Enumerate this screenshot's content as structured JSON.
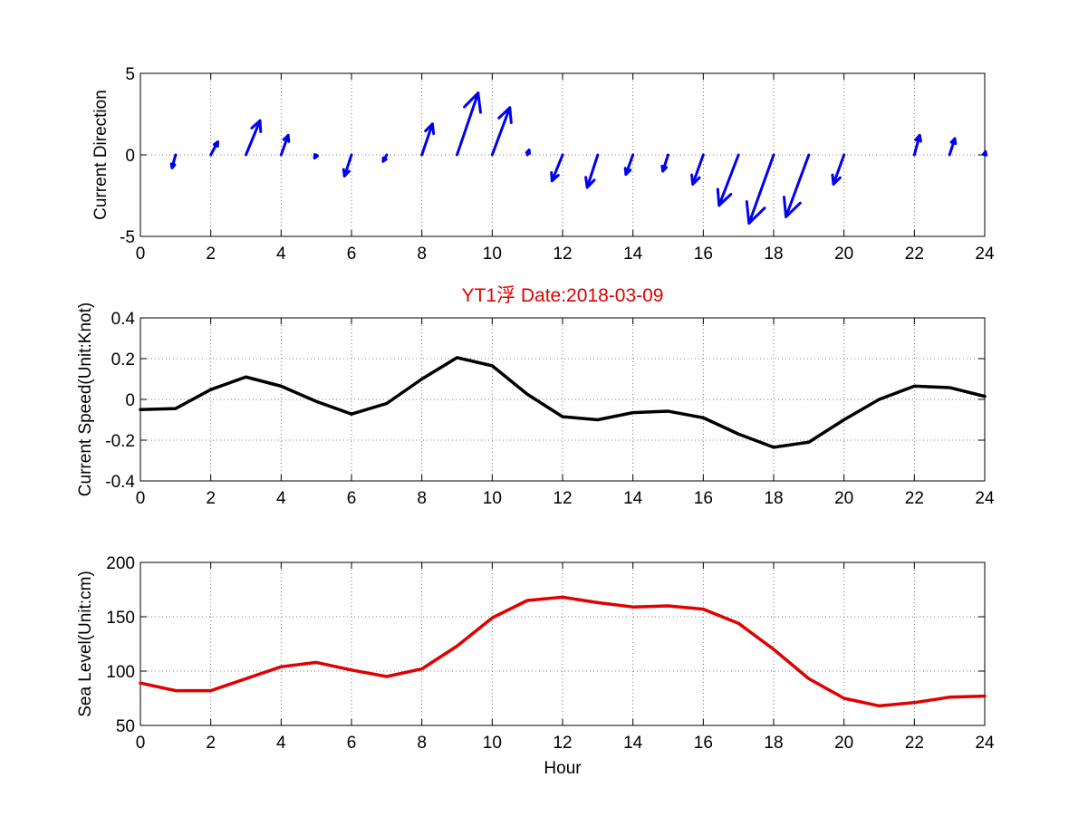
{
  "title": {
    "text": "YT1浮   Date:2018-03-09",
    "color": "#e00000"
  },
  "xlabel": "Hour",
  "chart_data": [
    {
      "type": "quiver",
      "ylabel": "Current Direction",
      "xlim": [
        0,
        24
      ],
      "ylim": [
        -5,
        5
      ],
      "xticks": [
        "0",
        "2",
        "4",
        "6",
        "8",
        "10",
        "12",
        "14",
        "16",
        "18",
        "20",
        "22",
        "24"
      ],
      "yticks": [
        "-5",
        "0",
        "5"
      ],
      "grid": true,
      "color": "#0000ee",
      "arrows": [
        {
          "x": 1,
          "u": -0.1,
          "v": -0.8
        },
        {
          "x": 2,
          "u": 0.2,
          "v": 0.8
        },
        {
          "x": 3,
          "u": 0.4,
          "v": 2.1
        },
        {
          "x": 4,
          "u": 0.2,
          "v": 1.2
        },
        {
          "x": 5,
          "u": -0.05,
          "v": -0.2
        },
        {
          "x": 6,
          "u": -0.2,
          "v": -1.3
        },
        {
          "x": 7,
          "u": -0.1,
          "v": -0.4
        },
        {
          "x": 8,
          "u": 0.3,
          "v": 1.9
        },
        {
          "x": 9,
          "u": 0.6,
          "v": 3.8
        },
        {
          "x": 10,
          "u": 0.5,
          "v": 2.9
        },
        {
          "x": 11,
          "u": 0.05,
          "v": 0.3
        },
        {
          "x": 12,
          "u": -0.3,
          "v": -1.6
        },
        {
          "x": 13,
          "u": -0.3,
          "v": -2.0
        },
        {
          "x": 14,
          "u": -0.2,
          "v": -1.2
        },
        {
          "x": 15,
          "u": -0.15,
          "v": -1.0
        },
        {
          "x": 16,
          "u": -0.3,
          "v": -1.8
        },
        {
          "x": 17,
          "u": -0.55,
          "v": -3.1
        },
        {
          "x": 18,
          "u": -0.7,
          "v": -4.2
        },
        {
          "x": 19,
          "u": -0.65,
          "v": -3.8
        },
        {
          "x": 20,
          "u": -0.3,
          "v": -1.8
        },
        {
          "x": 22,
          "u": 0.15,
          "v": 1.2
        },
        {
          "x": 23,
          "u": 0.15,
          "v": 1.0
        },
        {
          "x": 24,
          "u": 0.02,
          "v": 0.2
        }
      ]
    },
    {
      "type": "line",
      "ylabel": "Current Speed(Unit:Knot)",
      "xlim": [
        0,
        24
      ],
      "ylim": [
        -0.4,
        0.4
      ],
      "xticks": [
        "0",
        "2",
        "4",
        "6",
        "8",
        "10",
        "12",
        "14",
        "16",
        "18",
        "20",
        "22",
        "24"
      ],
      "yticks": [
        "-0.4",
        "-0.2",
        "0",
        "0.2",
        "0.4"
      ],
      "grid": true,
      "series": [
        {
          "color": "#000000",
          "x": [
            0,
            1,
            2,
            3,
            4,
            5,
            6,
            7,
            8,
            9,
            10,
            11,
            12,
            13,
            14,
            15,
            16,
            17,
            18,
            19,
            20,
            21,
            22,
            23,
            24
          ],
          "values": [
            -0.05,
            -0.045,
            0.048,
            0.11,
            0.065,
            -0.01,
            -0.072,
            -0.02,
            0.1,
            0.205,
            0.165,
            0.025,
            -0.085,
            -0.1,
            -0.065,
            -0.058,
            -0.09,
            -0.17,
            -0.235,
            -0.21,
            -0.1,
            0.0,
            0.065,
            0.058,
            0.015
          ]
        }
      ]
    },
    {
      "type": "line",
      "ylabel": "Sea Level(Unit:cm)",
      "xlabel": "Hour",
      "xlim": [
        0,
        24
      ],
      "ylim": [
        50,
        200
      ],
      "xticks": [
        "0",
        "2",
        "4",
        "6",
        "8",
        "10",
        "12",
        "14",
        "16",
        "18",
        "20",
        "22",
        "24"
      ],
      "yticks": [
        "50",
        "100",
        "150",
        "200"
      ],
      "grid": true,
      "series": [
        {
          "color": "#e00000",
          "x": [
            0,
            1,
            2,
            3,
            4,
            5,
            6,
            7,
            8,
            9,
            10,
            11,
            12,
            13,
            14,
            15,
            16,
            17,
            18,
            19,
            20,
            21,
            22,
            23,
            24
          ],
          "values": [
            89,
            82,
            82,
            93,
            104,
            108,
            101,
            95,
            102,
            123,
            149,
            165,
            168,
            163,
            159,
            160,
            157,
            144,
            120,
            93,
            75,
            68,
            71,
            76,
            77
          ]
        }
      ]
    }
  ]
}
